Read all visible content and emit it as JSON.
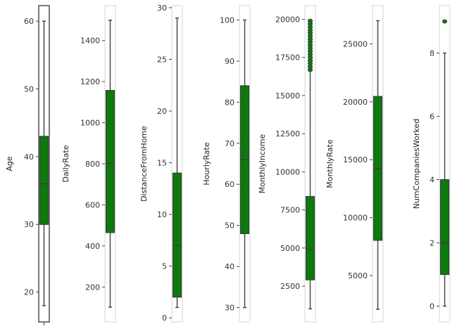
{
  "chart_data": [
    {
      "type": "box",
      "ylabel": "Age",
      "ylim": [
        15.6,
        62.3
      ],
      "ticks": [
        20,
        30,
        40,
        50,
        60
      ],
      "box": {
        "whisker_low": 18,
        "q1": 30,
        "median": 36,
        "q3": 43,
        "whisker_high": 60
      },
      "outliers": [],
      "color": "#0c7a0c",
      "xtick": true
    },
    {
      "type": "box",
      "ylabel": "DailyRate",
      "ylim": [
        30,
        1570
      ],
      "ticks": [
        200,
        400,
        600,
        800,
        1000,
        1200,
        1400
      ],
      "box": {
        "whisker_low": 102,
        "q1": 465,
        "median": 802,
        "q3": 1157,
        "whisker_high": 1499
      },
      "outliers": [],
      "color": "#0c7a0c",
      "xtick": false
    },
    {
      "type": "box",
      "ylabel": "DistanceFromHome",
      "ylim": [
        -0.4,
        30.2
      ],
      "ticks": [
        0,
        5,
        10,
        15,
        20,
        25,
        30
      ],
      "box": {
        "whisker_low": 1,
        "q1": 2,
        "median": 7,
        "q3": 14,
        "whisker_high": 29
      },
      "outliers": [],
      "color": "#0c7a0c",
      "xtick": false
    },
    {
      "type": "box",
      "ylabel": "HourlyRate",
      "ylim": [
        26.5,
        103.5
      ],
      "ticks": [
        30,
        40,
        50,
        60,
        70,
        80,
        90,
        100
      ],
      "box": {
        "whisker_low": 30,
        "q1": 48,
        "median": 66,
        "q3": 84,
        "whisker_high": 100
      },
      "outliers": [],
      "color": "#0c7a0c",
      "xtick": false
    },
    {
      "type": "box",
      "ylabel": "MonthlyIncome",
      "ylim": [
        150,
        20900
      ],
      "ticks": [
        2500,
        5000,
        7500,
        10000,
        12500,
        15000,
        17500,
        20000
      ],
      "box": {
        "whisker_low": 1009,
        "q1": 2911,
        "median": 4919,
        "q3": 8379,
        "whisker_high": 16600
      },
      "outliers": [
        16700,
        16900,
        17100,
        17300,
        17500,
        17700,
        17900,
        18100,
        18300,
        18500,
        18700,
        18900,
        19100,
        19300,
        19500,
        19700,
        19900
      ],
      "color": "#0c7a0c",
      "xtick": false
    },
    {
      "type": "box",
      "ylabel": "MonthlyRate",
      "ylim": [
        1000,
        28300
      ],
      "ticks": [
        5000,
        10000,
        15000,
        20000,
        25000
      ],
      "box": {
        "whisker_low": 2094,
        "q1": 8047,
        "median": 14236,
        "q3": 20462,
        "whisker_high": 26999
      },
      "outliers": [],
      "color": "#0c7a0c",
      "xtick": false
    },
    {
      "type": "box",
      "ylabel": "NumCompaniesWorked",
      "ylim": [
        -0.5,
        9.5
      ],
      "ticks": [
        0,
        2,
        4,
        6,
        8
      ],
      "box": {
        "whisker_low": 0,
        "q1": 1,
        "median": 2,
        "q3": 4,
        "whisker_high": 8
      },
      "outliers": [
        9
      ],
      "color": "#0c7a0c",
      "xtick": false
    }
  ]
}
